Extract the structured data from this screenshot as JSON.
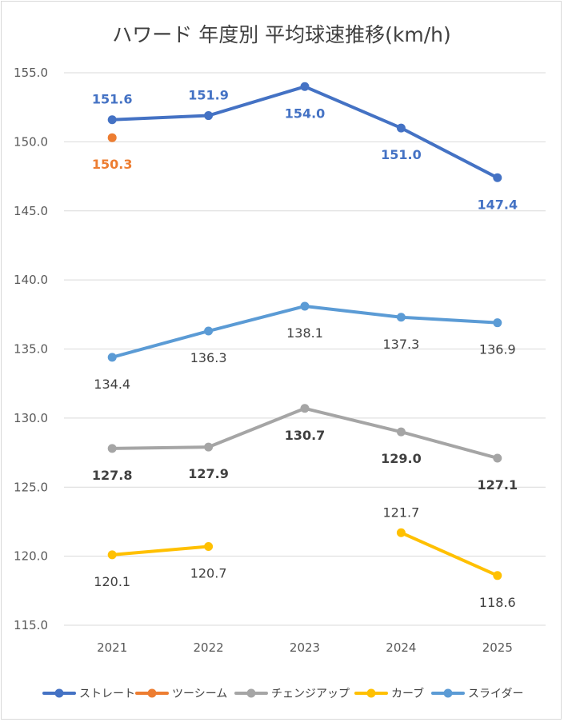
{
  "chart_data": {
    "type": "line",
    "title": "ハワード 年度別 平均球速推移(km/h)",
    "xlabel": "",
    "ylabel": "",
    "categories": [
      "2021",
      "2022",
      "2023",
      "2024",
      "2025"
    ],
    "ylim": [
      115.0,
      155.0
    ],
    "yticks": [
      "115.0",
      "120.0",
      "125.0",
      "130.0",
      "135.0",
      "140.0",
      "145.0",
      "150.0",
      "155.0"
    ],
    "grid": true,
    "legend_position": "bottom",
    "series": [
      {
        "name": "ストレート",
        "color": "#4472C4",
        "labelColor": "#4472C4",
        "bold": true,
        "labelPos": [
          "above",
          "above",
          "below",
          "below",
          "below"
        ],
        "values": [
          151.6,
          151.9,
          154.0,
          151.0,
          147.4
        ],
        "labels": [
          "151.6",
          "151.9",
          "154.0",
          "151.0",
          "147.4"
        ]
      },
      {
        "name": "ツーシーム",
        "color": "#ED7D31",
        "labelColor": "#ED7D31",
        "bold": true,
        "labelPos": [
          "below",
          null,
          null,
          null,
          null
        ],
        "values": [
          150.3,
          null,
          null,
          null,
          null
        ],
        "labels": [
          "150.3",
          null,
          null,
          null,
          null
        ]
      },
      {
        "name": "チェンジアップ",
        "color": "#A5A5A5",
        "labelColor": "#404040",
        "bold": true,
        "labelPos": [
          "below",
          "below",
          "below",
          "below",
          "below"
        ],
        "values": [
          127.8,
          127.9,
          130.7,
          129.0,
          127.1
        ],
        "labels": [
          "127.8",
          "127.9",
          "130.7",
          "129.0",
          "127.1"
        ]
      },
      {
        "name": "カーブ",
        "color": "#FFC000",
        "labelColor": "#404040",
        "bold": false,
        "labelPos": [
          "below",
          "below",
          null,
          "above",
          "below"
        ],
        "values": [
          120.1,
          120.7,
          null,
          121.7,
          118.6
        ],
        "labels": [
          "120.1",
          "120.7",
          null,
          "121.7",
          "118.6"
        ]
      },
      {
        "name": "スライダー",
        "color": "#5B9BD5",
        "labelColor": "#404040",
        "bold": false,
        "labelPos": [
          "below",
          "below",
          "below",
          "below",
          "below"
        ],
        "values": [
          134.4,
          136.3,
          138.1,
          137.3,
          136.9
        ],
        "labels": [
          "134.4",
          "136.3",
          "138.1",
          "137.3",
          "136.9"
        ]
      }
    ]
  }
}
